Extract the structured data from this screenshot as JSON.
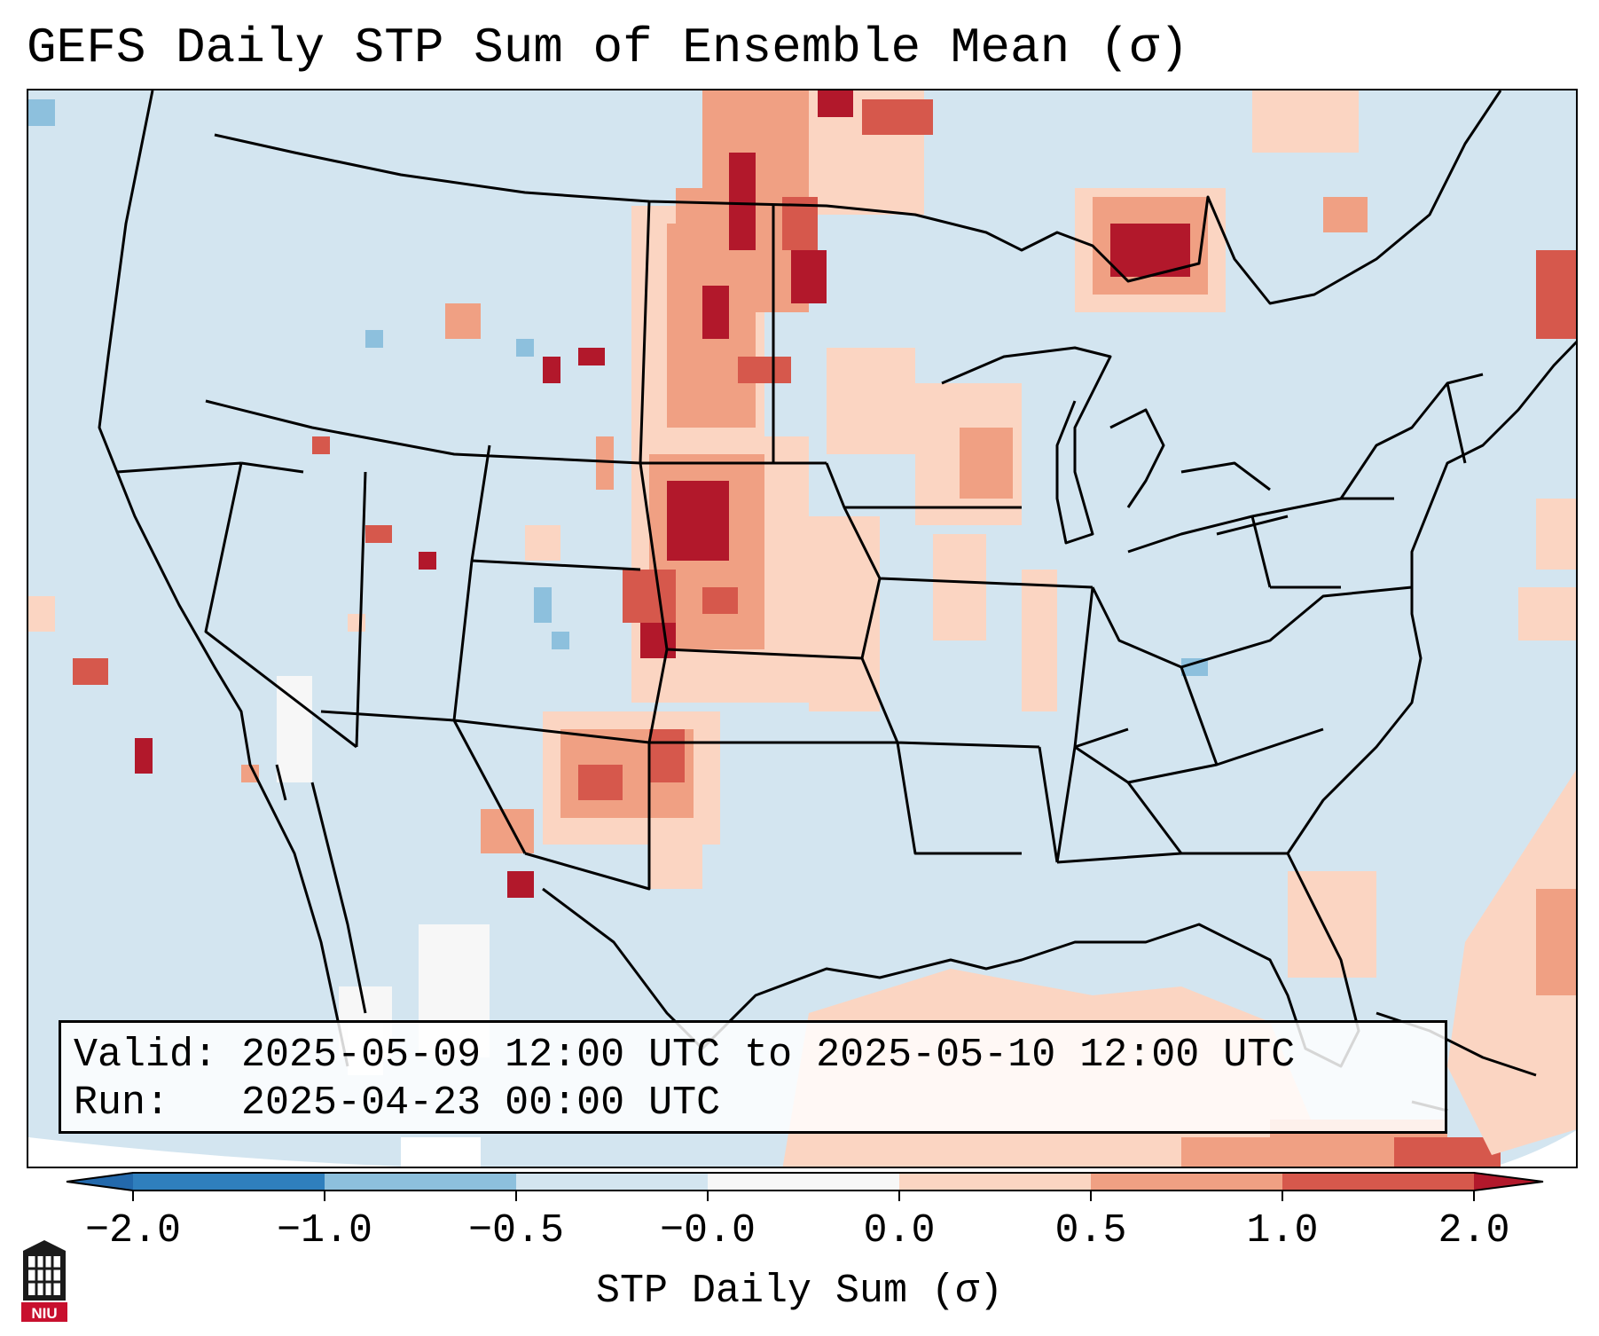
{
  "title": "GEFS Daily STP Sum of Ensemble Mean (σ)",
  "info": {
    "valid_label": "Valid:",
    "valid_value": "2025-05-09 12:00 UTC to 2025-05-10 12:00 UTC",
    "run_label": "Run:",
    "run_value": "2025-04-23 00:00 UTC"
  },
  "colorbar": {
    "label": "STP Daily Sum (σ)",
    "ticks": [
      "−2.0",
      "−1.0",
      "−0.5",
      "−0.0",
      "0.0",
      "0.5",
      "1.0",
      "2.0"
    ],
    "bin_colors": [
      "#2f7fbd",
      "#8dc0dd",
      "#d3e5f0",
      "#f7f7f7",
      "#fbd5c2",
      "#f0a083",
      "#d6584c"
    ],
    "extend_low_color": "#2369ac",
    "extend_high_color": "#b2182b"
  },
  "map": {
    "region": "Continental United States",
    "background_color": "#d3e5f0",
    "anomaly_areas": [
      {
        "name": "northern-plains",
        "level": "high"
      },
      {
        "name": "central-high-plains",
        "level": "high"
      },
      {
        "name": "southern-high-plains",
        "level": "elevated"
      },
      {
        "name": "upper-midwest",
        "level": "elevated"
      },
      {
        "name": "ontario",
        "level": "high"
      },
      {
        "name": "gulf-of-mexico",
        "level": "elevated"
      },
      {
        "name": "western-atlantic",
        "level": "elevated"
      },
      {
        "name": "mexico-sierra-madre",
        "level": "neutral"
      }
    ]
  },
  "logo": {
    "text": "NIU"
  }
}
